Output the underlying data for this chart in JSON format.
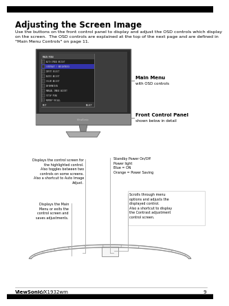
{
  "title": "Adjusting the Screen Image",
  "body_text": "Use the buttons on the front control panel to display and adjust the OSD controls which display\non the screen.  The OSD controls are explained at the top of the next page and are defined in\n\"Main Menu Controls\" on page 11.",
  "callout_main_menu_label": "Main Menu",
  "callout_main_menu_sub": "with OSD controls",
  "callout_front_panel_label": "Front Control Panel",
  "callout_front_panel_sub": "shown below in detail",
  "left_callout1": "Displays the control screen for\nthe highlighted control.\nAlso toggles between two\ncontrols on some screens.\nAlso a shortcut to Auto Image\nAdjust.",
  "left_callout2": "Displays the Main\nMenu or exits the\ncontrol screen and\nsaves adjustments.",
  "right_callout1": "Standby Power On/Off\nPower light\nBlue = ON\nOrange = Power Saving",
  "right_callout2": "Scrolls through menu\noptions and adjusts the\ndisplayed control.\nAlso a shortcut to display\nthe Contrast adjustment\ncontrol screen.",
  "footer_brand": "ViewSonic",
  "footer_model": "VX1932wm",
  "footer_page": "9",
  "bg_color": "#ffffff",
  "text_color": "#000000",
  "monitor_body_color": "#2a2a2a",
  "monitor_screen_color": "#3d3d3d",
  "header_bar_color": "#000000"
}
